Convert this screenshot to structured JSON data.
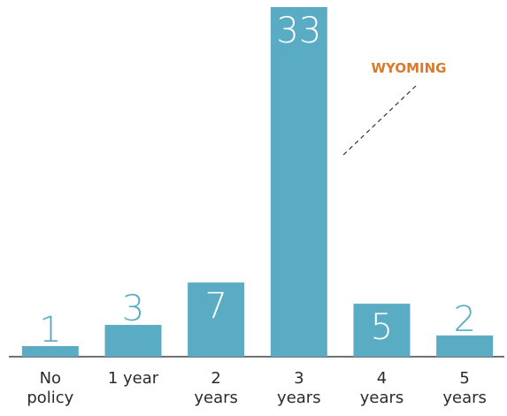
{
  "chart_data": {
    "type": "bar",
    "categories": [
      "No policy",
      "1 year",
      "2 years",
      "3 years",
      "4 years",
      "5 years"
    ],
    "values": [
      1,
      3,
      7,
      33,
      5,
      2
    ],
    "color": "#5aabc4",
    "ylim": [
      0,
      33
    ],
    "annotation": "WYOMING",
    "annotation_color": "#d97a2b"
  }
}
